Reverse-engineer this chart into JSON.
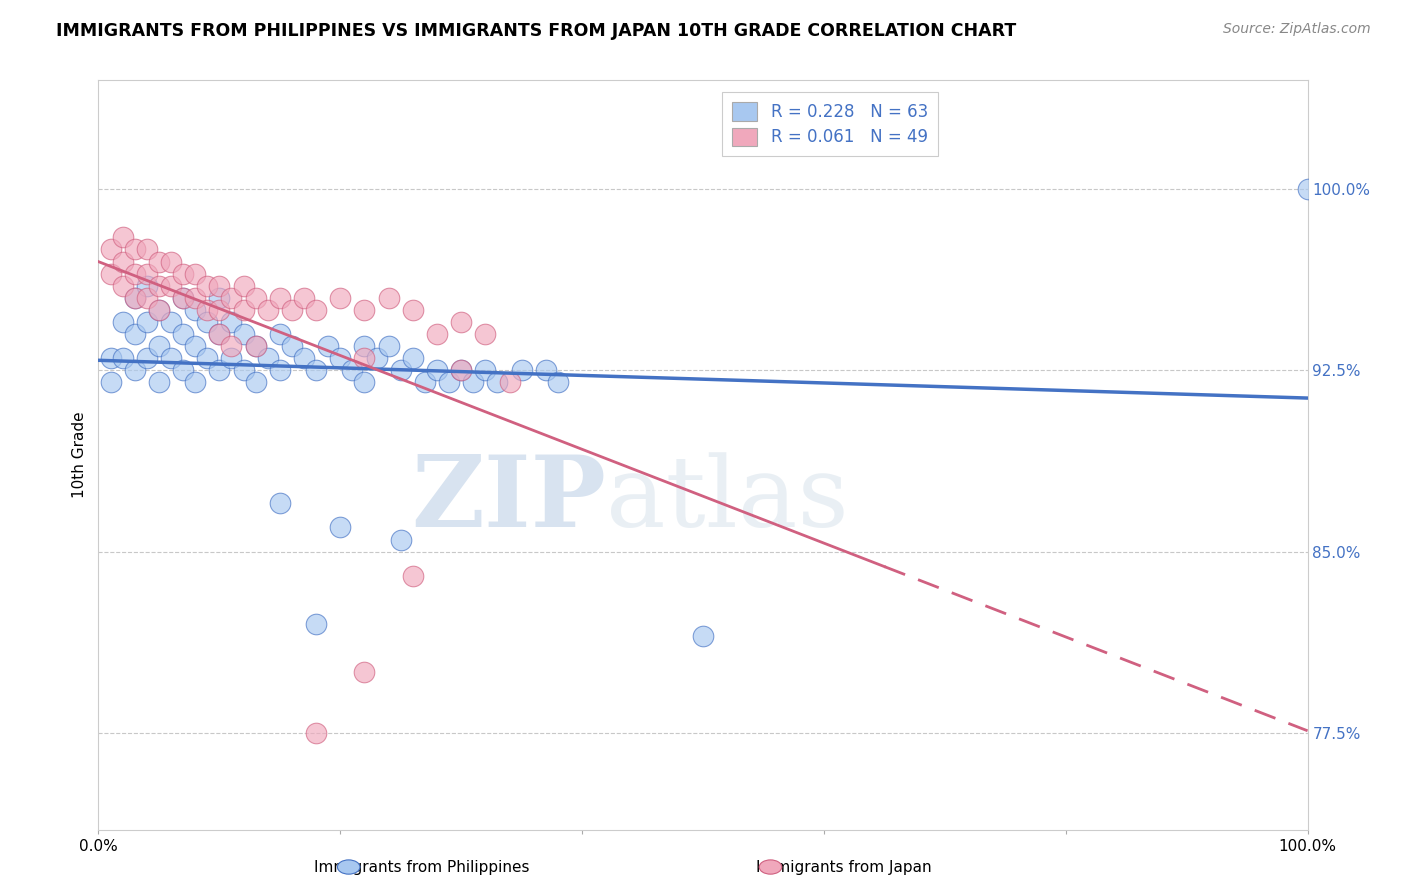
{
  "title": "IMMIGRANTS FROM PHILIPPINES VS IMMIGRANTS FROM JAPAN 10TH GRADE CORRELATION CHART",
  "source": "Source: ZipAtlas.com",
  "ylabel": "10th Grade",
  "yticks": [
    0.775,
    0.85,
    0.925,
    1.0
  ],
  "ytick_labels": [
    "77.5%",
    "85.0%",
    "92.5%",
    "100.0%"
  ],
  "xmin": 0.0,
  "xmax": 1.0,
  "ymin": 0.735,
  "ymax": 1.045,
  "legend_blue_r": "R = 0.228",
  "legend_blue_n": "N = 63",
  "legend_pink_r": "R = 0.061",
  "legend_pink_n": "N = 49",
  "legend_blue_label": "Immigrants from Philippines",
  "legend_pink_label": "Immigrants from Japan",
  "blue_color": "#a8c8f0",
  "pink_color": "#f0a8bc",
  "blue_line_color": "#4472c4",
  "pink_line_color": "#d06080",
  "watermark_zip": "ZIP",
  "watermark_atlas": "atlas",
  "blue_scatter_x": [
    0.01,
    0.01,
    0.02,
    0.02,
    0.03,
    0.03,
    0.03,
    0.04,
    0.04,
    0.04,
    0.05,
    0.05,
    0.05,
    0.06,
    0.06,
    0.07,
    0.07,
    0.07,
    0.08,
    0.08,
    0.08,
    0.09,
    0.09,
    0.1,
    0.1,
    0.1,
    0.11,
    0.11,
    0.12,
    0.12,
    0.13,
    0.13,
    0.14,
    0.15,
    0.15,
    0.16,
    0.17,
    0.18,
    0.19,
    0.2,
    0.21,
    0.22,
    0.22,
    0.23,
    0.24,
    0.25,
    0.26,
    0.27,
    0.28,
    0.29,
    0.3,
    0.31,
    0.32,
    0.33,
    0.35,
    0.37,
    0.15,
    0.2,
    0.25,
    0.38,
    0.18,
    0.5,
    1.0
  ],
  "blue_scatter_y": [
    0.93,
    0.92,
    0.945,
    0.93,
    0.955,
    0.94,
    0.925,
    0.96,
    0.945,
    0.93,
    0.95,
    0.935,
    0.92,
    0.945,
    0.93,
    0.955,
    0.94,
    0.925,
    0.95,
    0.935,
    0.92,
    0.945,
    0.93,
    0.955,
    0.94,
    0.925,
    0.945,
    0.93,
    0.94,
    0.925,
    0.935,
    0.92,
    0.93,
    0.94,
    0.925,
    0.935,
    0.93,
    0.925,
    0.935,
    0.93,
    0.925,
    0.935,
    0.92,
    0.93,
    0.935,
    0.925,
    0.93,
    0.92,
    0.925,
    0.92,
    0.925,
    0.92,
    0.925,
    0.92,
    0.925,
    0.925,
    0.87,
    0.86,
    0.855,
    0.92,
    0.82,
    0.815,
    1.0
  ],
  "pink_scatter_x": [
    0.01,
    0.01,
    0.02,
    0.02,
    0.02,
    0.03,
    0.03,
    0.03,
    0.04,
    0.04,
    0.04,
    0.05,
    0.05,
    0.05,
    0.06,
    0.06,
    0.07,
    0.07,
    0.08,
    0.08,
    0.09,
    0.09,
    0.1,
    0.1,
    0.11,
    0.12,
    0.12,
    0.13,
    0.14,
    0.15,
    0.16,
    0.17,
    0.18,
    0.2,
    0.22,
    0.24,
    0.26,
    0.28,
    0.3,
    0.32,
    0.1,
    0.11,
    0.13,
    0.22,
    0.3,
    0.34,
    0.26,
    0.22,
    0.18
  ],
  "pink_scatter_y": [
    0.975,
    0.965,
    0.98,
    0.97,
    0.96,
    0.975,
    0.965,
    0.955,
    0.975,
    0.965,
    0.955,
    0.97,
    0.96,
    0.95,
    0.97,
    0.96,
    0.965,
    0.955,
    0.965,
    0.955,
    0.96,
    0.95,
    0.96,
    0.95,
    0.955,
    0.96,
    0.95,
    0.955,
    0.95,
    0.955,
    0.95,
    0.955,
    0.95,
    0.955,
    0.95,
    0.955,
    0.95,
    0.94,
    0.945,
    0.94,
    0.94,
    0.935,
    0.935,
    0.93,
    0.925,
    0.92,
    0.84,
    0.8,
    0.775
  ]
}
